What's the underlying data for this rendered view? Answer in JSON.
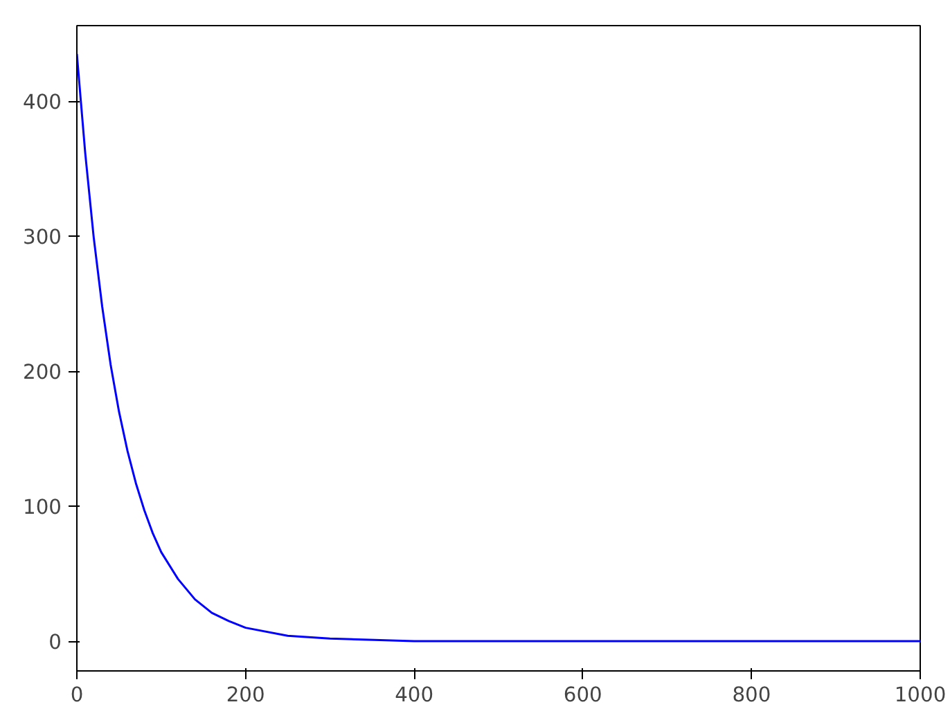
{
  "chart_data": {
    "type": "line",
    "x": [
      0,
      10,
      20,
      30,
      40,
      50,
      60,
      70,
      80,
      90,
      100,
      120,
      140,
      160,
      180,
      200,
      250,
      300,
      400,
      500,
      700,
      1000
    ],
    "series": [
      {
        "color": "#0000ff",
        "values": [
          435,
          361,
          299,
          248,
          205,
          170,
          141,
          117,
          97,
          80,
          66,
          46,
          31,
          21,
          15,
          10,
          4,
          2,
          0,
          0,
          0,
          0
        ]
      }
    ],
    "xlim": [
      0,
      1000
    ],
    "ylim": [
      -22,
      456
    ],
    "xticks": [
      0,
      200,
      400,
      600,
      800,
      1000
    ],
    "yticks": [
      0,
      100,
      200,
      300,
      400
    ],
    "grid": false
  }
}
